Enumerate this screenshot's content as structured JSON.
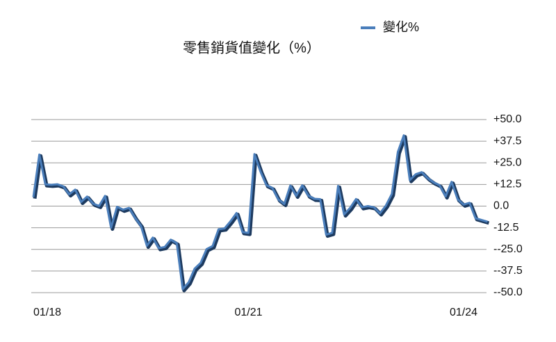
{
  "chart_data": {
    "type": "line",
    "title": "零售銷貨值變化（%）",
    "categories": [
      "01/18",
      null,
      null,
      null,
      null,
      null,
      null,
      null,
      null,
      null,
      null,
      null,
      null,
      null,
      null,
      null,
      null,
      null,
      null,
      null,
      null,
      null,
      null,
      null,
      null,
      null,
      null,
      null,
      null,
      null,
      null,
      null,
      null,
      null,
      null,
      null,
      "01/21",
      null,
      null,
      null,
      null,
      null,
      null,
      null,
      null,
      null,
      null,
      null,
      null,
      null,
      null,
      null,
      null,
      null,
      null,
      null,
      null,
      null,
      null,
      null,
      null,
      null,
      null,
      null,
      null,
      null,
      null,
      null,
      null,
      null,
      null,
      null,
      "01/24",
      null,
      null,
      null,
      null
    ],
    "series": [
      {
        "name": "變化%",
        "color": "#4a7ebb",
        "values": [
          5.2,
          29.8,
          12.6,
          12.3,
          12.6,
          11.4,
          6.8,
          9.5,
          2.4,
          5.5,
          1.4,
          0.1,
          5.9,
          -12.5,
          -0.4,
          -2.1,
          -1.0,
          -6.7,
          -11.4,
          -22.9,
          -18.2,
          -24.3,
          -23.6,
          -19.4,
          -21.4,
          -48.0,
          -44.0,
          -36.1,
          -32.8,
          -24.8,
          -23.1,
          -13.4,
          -12.9,
          -8.8,
          -4.0,
          -15.0,
          -15.5,
          30.0,
          20.1,
          12.1,
          10.5,
          3.8,
          1.2,
          11.9,
          6.0,
          12.0,
          6.1,
          4.2,
          4.0,
          -16.5,
          -15.5,
          11.7,
          -4.8,
          -1.1,
          4.1,
          -0.7,
          0.0,
          -0.7,
          -4.2,
          0.3,
          7.0,
          31.2,
          40.9,
          15.0,
          18.4,
          19.6,
          16.1,
          13.7,
          12.0,
          5.6,
          14.0,
          4.0,
          0.9,
          1.9,
          -7.0,
          -8.0,
          -9.0
        ]
      }
    ],
    "ylim": [
      -50,
      50
    ],
    "yticks": [
      {
        "value": 50,
        "label": "+50.0"
      },
      {
        "value": 37.5,
        "label": "+37.5"
      },
      {
        "value": 25,
        "label": "+25.0"
      },
      {
        "value": 12.5,
        "label": "+12.5"
      },
      {
        "value": 0,
        "label": "0.0"
      },
      {
        "value": -12.5,
        "label": "-12.5"
      },
      {
        "value": -25,
        "label": "--25.0"
      },
      {
        "value": -37.5,
        "label": "--37.5"
      },
      {
        "value": -50,
        "label": "--50.0"
      }
    ],
    "grid": true
  }
}
